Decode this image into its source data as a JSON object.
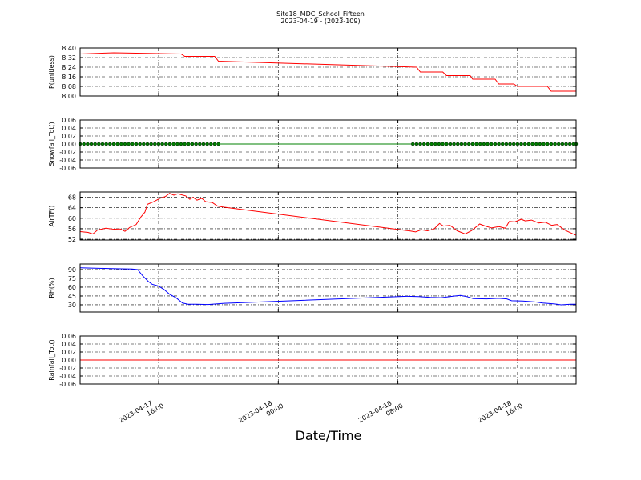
{
  "chart_data": [
    {
      "type": "line",
      "title": "Site18_MDC_School_Fifteen",
      "subtitle": "2023-04-19 - (2023-109)",
      "ylabel": "P(unitless)",
      "xlim": [
        "2023-04-17 10:45",
        "2023-04-18 19:55"
      ],
      "ylim": [
        8.0,
        8.4
      ],
      "yticks": [
        {
          "value": 8,
          "label": "8.00"
        },
        8.08,
        8.16,
        8.24,
        8.32,
        {
          "value": 8.4,
          "label": "8.40"
        }
      ],
      "grid": true,
      "x": [
        "2023-04-17 10:45",
        "2023-04-17 13:00",
        "2023-04-17 17:30",
        "2023-04-17 17:45",
        "2023-04-17 19:45",
        "2023-04-17 20:00",
        "2023-04-18 09:15",
        "2023-04-18 09:30",
        "2023-04-18 11:00",
        "2023-04-18 11:15",
        "2023-04-18 12:50",
        "2023-04-18 13:00",
        "2023-04-18 14:30",
        "2023-04-18 14:45",
        "2023-04-18 15:45",
        "2023-04-18 16:00",
        "2023-04-18 18:00",
        "2023-04-18 18:15",
        "2023-04-18 19:55"
      ],
      "series": [
        {
          "color": "#ff0000",
          "values": [
            8.35,
            8.36,
            8.35,
            8.33,
            8.33,
            8.29,
            8.24,
            8.2,
            8.2,
            8.17,
            8.17,
            8.14,
            8.14,
            8.1,
            8.1,
            8.08,
            8.08,
            8.04,
            8.04
          ]
        }
      ]
    },
    {
      "type": "line",
      "ylabel": "Snowfall_Tot()",
      "xlim": [
        "2023-04-17 10:45",
        "2023-04-18 19:55"
      ],
      "ylim": [
        -0.06,
        0.06
      ],
      "yticks": [
        -0.06,
        -0.04,
        -0.02,
        {
          "value": 0,
          "label": "0.00"
        },
        0.02,
        0.04,
        0.06
      ],
      "grid": true,
      "x": [
        "2023-04-17 10:45",
        "2023-04-17 11:00",
        "2023-04-17 11:15",
        "2023-04-17 11:30",
        "2023-04-17 11:45",
        "2023-04-17 12:00",
        "2023-04-17 12:15",
        "2023-04-17 12:30",
        "2023-04-17 12:45",
        "2023-04-17 13:00",
        "2023-04-17 13:15",
        "2023-04-17 13:30",
        "2023-04-17 13:45",
        "2023-04-17 14:00",
        "2023-04-17 14:15",
        "2023-04-17 14:30",
        "2023-04-17 14:45",
        "2023-04-17 15:00",
        "2023-04-17 15:15",
        "2023-04-17 15:30",
        "2023-04-17 15:45",
        "2023-04-17 16:00",
        "2023-04-17 16:15",
        "2023-04-17 16:30",
        "2023-04-17 16:45",
        "2023-04-17 17:00",
        "2023-04-17 17:15",
        "2023-04-17 17:30",
        "2023-04-17 17:45",
        "2023-04-17 18:00",
        "2023-04-17 18:15",
        "2023-04-17 18:30",
        "2023-04-17 18:45",
        "2023-04-17 19:00",
        "2023-04-17 19:15",
        "2023-04-17 19:30",
        "2023-04-17 19:45",
        "2023-04-17 20:00",
        "2023-04-18 09:00",
        "2023-04-18 09:15",
        "2023-04-18 09:30",
        "2023-04-18 09:45",
        "2023-04-18 10:00",
        "2023-04-18 10:15",
        "2023-04-18 10:30",
        "2023-04-18 10:45",
        "2023-04-18 11:00",
        "2023-04-18 11:15",
        "2023-04-18 11:30",
        "2023-04-18 11:45",
        "2023-04-18 12:00",
        "2023-04-18 12:15",
        "2023-04-18 12:30",
        "2023-04-18 12:45",
        "2023-04-18 13:00",
        "2023-04-18 13:15",
        "2023-04-18 13:30",
        "2023-04-18 13:45",
        "2023-04-18 14:00",
        "2023-04-18 14:15",
        "2023-04-18 14:30",
        "2023-04-18 14:45",
        "2023-04-18 15:00",
        "2023-04-18 15:15",
        "2023-04-18 15:30",
        "2023-04-18 15:45",
        "2023-04-18 16:00",
        "2023-04-18 16:15",
        "2023-04-18 16:30",
        "2023-04-18 16:45",
        "2023-04-18 17:00",
        "2023-04-18 17:15",
        "2023-04-18 17:30",
        "2023-04-18 17:45",
        "2023-04-18 18:00",
        "2023-04-18 18:15",
        "2023-04-18 18:30",
        "2023-04-18 18:45",
        "2023-04-18 19:00",
        "2023-04-18 19:15",
        "2023-04-18 19:30",
        "2023-04-18 19:45",
        "2023-04-18 19:55"
      ],
      "series": [
        {
          "color": "#008000",
          "marker": true,
          "values": [
            0,
            0,
            0,
            0,
            0,
            0,
            0,
            0,
            0,
            0,
            0,
            0,
            0,
            0,
            0,
            0,
            0,
            0,
            0,
            0,
            0,
            0,
            0,
            0,
            0,
            0,
            0,
            0,
            0,
            0,
            0,
            0,
            0,
            0,
            0,
            0,
            0,
            0,
            0,
            0,
            0,
            0,
            0,
            0,
            0,
            0,
            0,
            0,
            0,
            0,
            0,
            0,
            0,
            0,
            0,
            0,
            0,
            0,
            0,
            0,
            0,
            0,
            0,
            0,
            0,
            0,
            0,
            0,
            0,
            0,
            0,
            0,
            0,
            0,
            0,
            0,
            0,
            0,
            0,
            0,
            0,
            0,
            0
          ]
        }
      ]
    },
    {
      "type": "line",
      "ylabel": "AirTF()",
      "xlim": [
        "2023-04-17 10:45",
        "2023-04-18 19:55"
      ],
      "ylim": [
        51.7,
        70
      ],
      "yticks": [
        52,
        56,
        60,
        64,
        68
      ],
      "grid": true,
      "x": [
        "2023-04-17 10:45",
        "2023-04-17 11:17",
        "2023-04-17 11:36",
        "2023-04-17 11:55",
        "2023-04-17 12:28",
        "2023-04-17 13:00",
        "2023-04-17 13:26",
        "2023-04-17 13:45",
        "2023-04-17 14:04",
        "2023-04-17 14:30",
        "2023-04-17 14:49",
        "2023-04-17 15:05",
        "2023-04-17 15:15",
        "2023-04-17 15:40",
        "2023-04-17 16:06",
        "2023-04-17 16:28",
        "2023-04-17 16:44",
        "2023-04-17 17:01",
        "2023-04-17 17:17",
        "2023-04-17 17:49",
        "2023-04-17 18:05",
        "2023-04-17 18:18",
        "2023-04-17 18:34",
        "2023-04-17 18:53",
        "2023-04-17 19:09",
        "2023-04-17 19:35",
        "2023-04-17 19:57",
        "2023-04-17 20:23",
        "2023-04-18 08:45",
        "2023-04-18 09:11",
        "2023-04-18 09:34",
        "2023-04-18 09:59",
        "2023-04-18 10:25",
        "2023-04-18 10:47",
        "2023-04-18 11:03",
        "2023-04-18 11:29",
        "2023-04-18 11:58",
        "2023-04-18 12:30",
        "2023-04-18 12:56",
        "2023-04-18 13:28",
        "2023-04-18 13:51",
        "2023-04-18 14:16",
        "2023-04-18 14:45",
        "2023-04-18 15:11",
        "2023-04-18 15:27",
        "2023-04-18 15:49",
        "2023-04-18 16:15",
        "2023-04-18 16:31",
        "2023-04-18 16:56",
        "2023-04-18 17:25",
        "2023-04-18 17:51",
        "2023-04-18 18:17",
        "2023-04-18 18:39",
        "2023-04-18 19:11",
        "2023-04-18 19:43",
        "2023-04-18 19:55"
      ],
      "series": [
        {
          "color": "#ff0000",
          "values": [
            54.9,
            54.6,
            54.0,
            55.5,
            56.2,
            55.8,
            55.9,
            55.0,
            56.5,
            57.6,
            60.5,
            62.3,
            65.3,
            66.3,
            67.6,
            68.3,
            69.5,
            68.8,
            69.3,
            68.5,
            67.2,
            68.0,
            66.9,
            67.6,
            66.3,
            66.0,
            64.6,
            64.2,
            55.2,
            54.8,
            55.6,
            55.2,
            55.9,
            58.0,
            57.0,
            57.3,
            55.2,
            54.0,
            55.3,
            57.8,
            57.0,
            56.3,
            56.8,
            56.2,
            58.8,
            58.6,
            59.6,
            59.0,
            59.3,
            58.2,
            58.5,
            57.3,
            57.6,
            55.4,
            54.0,
            53.5
          ]
        }
      ]
    },
    {
      "type": "line",
      "ylabel": "RH(%)",
      "xlim": [
        "2023-04-17 10:45",
        "2023-04-18 19:55"
      ],
      "ylim": [
        17.7,
        99.5
      ],
      "yticks": [
        30,
        45,
        60,
        75,
        90
      ],
      "grid": true,
      "x": [
        "2023-04-17 10:45",
        "2023-04-17 12:21",
        "2023-04-17 13:09",
        "2023-04-17 14:13",
        "2023-04-17 14:36",
        "2023-04-17 14:55",
        "2023-04-17 15:18",
        "2023-04-17 15:34",
        "2023-04-17 15:59",
        "2023-04-17 16:22",
        "2023-04-17 16:44",
        "2023-04-17 17:10",
        "2023-04-17 17:36",
        "2023-04-17 17:58",
        "2023-04-17 18:30",
        "2023-04-17 19:18",
        "2023-04-17 19:51",
        "2023-04-17 20:23",
        "2023-04-18 08:35",
        "2023-04-18 09:23",
        "2023-04-18 10:11",
        "2023-04-18 10:54",
        "2023-04-18 11:48",
        "2023-04-18 12:11",
        "2023-04-18 12:36",
        "2023-04-18 13:02",
        "2023-04-18 13:56",
        "2023-04-18 14:44",
        "2023-04-18 15:17",
        "2023-04-18 15:36",
        "2023-04-18 16:21",
        "2023-04-18 17:09",
        "2023-04-18 17:41",
        "2023-04-18 18:29",
        "2023-04-18 18:55",
        "2023-04-18 19:33",
        "2023-04-18 19:55"
      ],
      "series": [
        {
          "color": "#0000ff",
          "values": [
            93,
            92,
            91.5,
            91,
            90,
            80,
            70,
            65,
            62,
            56,
            48,
            42,
            33,
            31,
            31,
            30.5,
            31.5,
            32.5,
            44.5,
            44.0,
            42.5,
            42.0,
            45,
            46,
            44,
            40.5,
            40,
            41,
            40,
            37,
            36.5,
            35,
            33,
            31.5,
            30,
            31,
            31
          ]
        }
      ]
    },
    {
      "type": "line",
      "ylabel": "Rainfall_Tot()",
      "xlabel": "Date/Time",
      "xlim": [
        "2023-04-17 10:45",
        "2023-04-18 19:55"
      ],
      "ylim": [
        -0.06,
        0.06
      ],
      "yticks": [
        -0.06,
        -0.04,
        -0.02,
        {
          "value": 0,
          "label": "0.00"
        },
        0.02,
        0.04,
        0.06
      ],
      "grid": true,
      "xticks": [
        {
          "value": "2023-04-17 16:00",
          "label": "2023-04-17\n16:00"
        },
        {
          "value": "2023-04-18 00:00",
          "label": "2023-04-18\n00:00"
        },
        {
          "value": "2023-04-18 08:00",
          "label": "2023-04-18\n08:00"
        },
        {
          "value": "2023-04-18 16:00",
          "label": "2023-04-18\n16:00"
        }
      ],
      "x": [
        "2023-04-17 10:45",
        "2023-04-18 19:55"
      ],
      "series": [
        {
          "color": "#ff0000",
          "values": [
            0,
            0
          ]
        }
      ]
    }
  ]
}
